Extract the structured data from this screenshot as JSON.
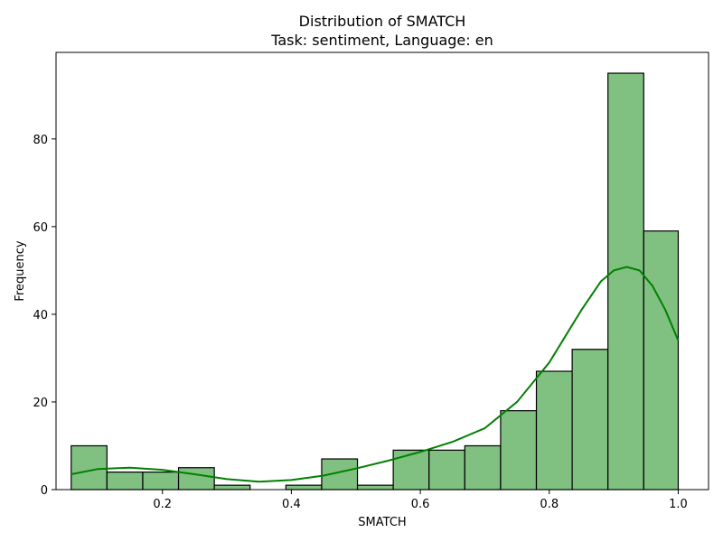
{
  "chart_data": {
    "type": "bar",
    "title": "Distribution of SMATCH",
    "subtitle": "Task: sentiment, Language: en",
    "xlabel": "SMATCH",
    "ylabel": "Frequency",
    "xlim": [
      0.035,
      1.047
    ],
    "ylim": [
      0,
      99.75
    ],
    "xticks": [
      0.2,
      0.4,
      0.6,
      0.8,
      1.0
    ],
    "xtick_labels": [
      "0.2",
      "0.4",
      "0.6",
      "0.8",
      "1.0"
    ],
    "yticks": [
      0,
      20,
      40,
      60,
      80
    ],
    "ytick_labels": [
      "0",
      "20",
      "40",
      "60",
      "80"
    ],
    "bins": [
      {
        "x0": 0.0585,
        "x1": 0.114,
        "count": 10
      },
      {
        "x0": 0.114,
        "x1": 0.1695,
        "count": 4
      },
      {
        "x0": 0.1695,
        "x1": 0.225,
        "count": 4
      },
      {
        "x0": 0.225,
        "x1": 0.2805,
        "count": 5
      },
      {
        "x0": 0.2805,
        "x1": 0.336,
        "count": 1
      },
      {
        "x0": 0.336,
        "x1": 0.3915,
        "count": 0
      },
      {
        "x0": 0.3915,
        "x1": 0.447,
        "count": 1
      },
      {
        "x0": 0.447,
        "x1": 0.5025,
        "count": 7
      },
      {
        "x0": 0.5025,
        "x1": 0.558,
        "count": 1
      },
      {
        "x0": 0.558,
        "x1": 0.6135,
        "count": 9
      },
      {
        "x0": 0.6135,
        "x1": 0.669,
        "count": 9
      },
      {
        "x0": 0.669,
        "x1": 0.7245,
        "count": 10
      },
      {
        "x0": 0.7245,
        "x1": 0.78,
        "count": 18
      },
      {
        "x0": 0.78,
        "x1": 0.8355,
        "count": 27
      },
      {
        "x0": 0.8355,
        "x1": 0.891,
        "count": 32
      },
      {
        "x0": 0.891,
        "x1": 0.9465,
        "count": 95
      },
      {
        "x0": 0.9465,
        "x1": 1.0,
        "count": 59
      }
    ],
    "kde": {
      "name": "KDE",
      "x": [
        0.0585,
        0.1,
        0.15,
        0.2,
        0.25,
        0.3,
        0.35,
        0.4,
        0.45,
        0.5,
        0.55,
        0.6,
        0.65,
        0.7,
        0.75,
        0.8,
        0.85,
        0.88,
        0.9,
        0.92,
        0.94,
        0.96,
        0.98,
        1.0
      ],
      "y": [
        3.5,
        4.7,
        5.0,
        4.5,
        3.5,
        2.4,
        1.8,
        2.2,
        3.2,
        4.8,
        6.6,
        8.6,
        10.9,
        14.0,
        20.0,
        29.0,
        41.0,
        47.5,
        50.0,
        50.8,
        50.0,
        46.5,
        41.0,
        34.0
      ]
    },
    "colors": {
      "bar_fill": "#80c080",
      "bar_edge": "#000000",
      "kde_line": "#008000"
    },
    "grid": false
  }
}
